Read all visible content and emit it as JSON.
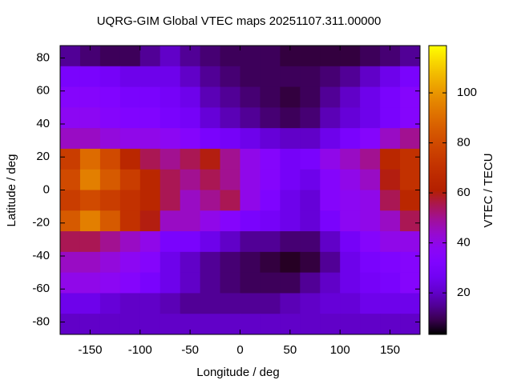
{
  "chart_data": {
    "type": "heatmap",
    "title": "UQRG-GIM Global VTEC maps 20251107.311.00000",
    "x_label": "Longitude / deg",
    "y_label": "Latitude / deg",
    "colorbar_label": "VTEC / TECU",
    "colormap": "gnuplot",
    "x": [
      -170,
      -150,
      -130,
      -110,
      -90,
      -70,
      -50,
      -30,
      -10,
      10,
      30,
      50,
      70,
      90,
      110,
      130,
      150,
      170
    ],
    "y": [
      81.25,
      68.75,
      56.25,
      43.75,
      31.25,
      18.75,
      6.25,
      -6.25,
      -18.75,
      -31.25,
      -43.75,
      -56.25,
      -68.75,
      -81.25
    ],
    "z": [
      [
        15,
        12,
        10,
        10,
        15,
        20,
        15,
        12,
        10,
        10,
        10,
        8,
        8,
        8,
        8,
        10,
        12,
        15
      ],
      [
        30,
        30,
        28,
        25,
        25,
        25,
        20,
        15,
        12,
        10,
        10,
        10,
        10,
        12,
        15,
        20,
        25,
        30
      ],
      [
        35,
        35,
        33,
        30,
        30,
        28,
        25,
        18,
        15,
        12,
        10,
        8,
        10,
        15,
        20,
        25,
        30,
        35
      ],
      [
        38,
        38,
        35,
        33,
        33,
        30,
        28,
        22,
        18,
        15,
        12,
        10,
        12,
        18,
        22,
        25,
        30,
        35
      ],
      [
        45,
        45,
        42,
        40,
        40,
        38,
        35,
        30,
        28,
        25,
        22,
        20,
        20,
        25,
        30,
        35,
        45,
        50
      ],
      [
        75,
        90,
        80,
        65,
        55,
        50,
        55,
        60,
        50,
        40,
        35,
        28,
        30,
        40,
        45,
        50,
        65,
        70
      ],
      [
        80,
        95,
        85,
        75,
        65,
        55,
        50,
        55,
        50,
        40,
        35,
        28,
        25,
        35,
        40,
        45,
        60,
        70
      ],
      [
        75,
        80,
        75,
        70,
        65,
        55,
        45,
        50,
        55,
        40,
        32,
        25,
        22,
        35,
        38,
        40,
        55,
        65
      ],
      [
        85,
        95,
        85,
        70,
        60,
        45,
        45,
        40,
        35,
        30,
        28,
        25,
        22,
        30,
        38,
        40,
        45,
        55
      ],
      [
        55,
        55,
        50,
        45,
        40,
        30,
        30,
        25,
        20,
        15,
        15,
        12,
        12,
        20,
        28,
        35,
        40,
        40
      ],
      [
        45,
        45,
        42,
        38,
        35,
        25,
        20,
        15,
        12,
        10,
        8,
        6,
        8,
        15,
        25,
        30,
        32,
        35
      ],
      [
        40,
        40,
        38,
        35,
        30,
        25,
        20,
        15,
        12,
        10,
        10,
        10,
        15,
        20,
        25,
        28,
        30,
        35
      ],
      [
        25,
        25,
        22,
        20,
        20,
        18,
        15,
        15,
        15,
        15,
        15,
        18,
        20,
        22,
        22,
        25,
        25,
        25
      ],
      [
        20,
        20,
        20,
        20,
        20,
        20,
        20,
        20,
        20,
        20,
        20,
        20,
        20,
        20,
        20,
        20,
        20,
        20
      ]
    ],
    "xlim": [
      -180,
      180
    ],
    "ylim": [
      -87.5,
      87.5
    ],
    "xticks": [
      -150,
      -100,
      -50,
      0,
      50,
      100,
      150
    ],
    "yticks": [
      80,
      60,
      40,
      20,
      0,
      -20,
      -40,
      -60,
      -80
    ],
    "cblim": [
      3.4,
      118.9
    ],
    "cbticks": [
      20,
      40,
      60,
      80,
      100
    ]
  }
}
